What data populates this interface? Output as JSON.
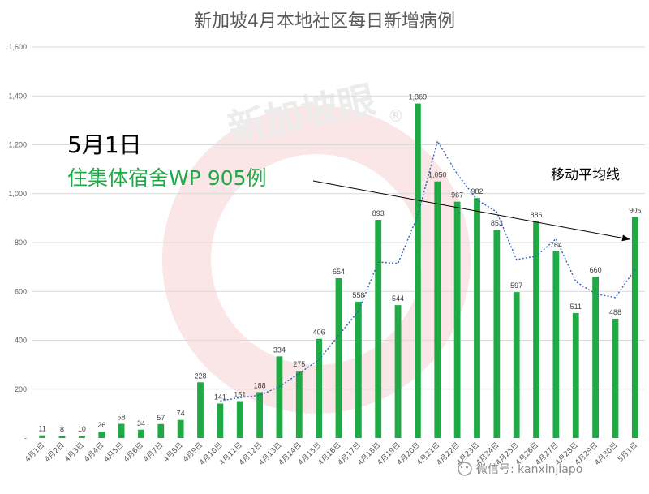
{
  "chart_data": {
    "type": "bar",
    "title": "新加坡4月本地社区每日新增病例",
    "categories": [
      "4月1日",
      "4月2日",
      "4月3日",
      "4月4日",
      "4月5日",
      "4月6日",
      "4月7日",
      "4月8日",
      "4月9日",
      "4月10日",
      "4月11日",
      "4月12日",
      "4月13日",
      "4月14日",
      "4月15日",
      "4月16日",
      "4月17日",
      "4月18日",
      "4月19日",
      "4月20日",
      "4月21日",
      "4月22日",
      "4月23日",
      "4月24日",
      "4月25日",
      "4月26日",
      "4月27日",
      "4月28日",
      "4月29日",
      "4月30日",
      "5月1日"
    ],
    "values": [
      11,
      8,
      10,
      26,
      58,
      34,
      57,
      74,
      228,
      141,
      151,
      188,
      334,
      275,
      406,
      654,
      558,
      893,
      544,
      1369,
      1050,
      967,
      982,
      853,
      597,
      886,
      764,
      511,
      660,
      488,
      905
    ],
    "moving_average": {
      "name": "移动平均线",
      "values": [
        null,
        null,
        null,
        null,
        null,
        null,
        null,
        null,
        null,
        152,
        165,
        175,
        210,
        265,
        320,
        420,
        520,
        720,
        715,
        910,
        1215,
        1080,
        975,
        925,
        730,
        745,
        815,
        640,
        590,
        575,
        690
      ]
    },
    "ylim": [
      0,
      1600
    ],
    "yticks": [
      0,
      200,
      400,
      600,
      800,
      1000,
      1200,
      1400,
      1600
    ],
    "ytick_labels": [
      "-",
      "200",
      "400",
      "600",
      "800",
      "1,000",
      "1,200",
      "1,400",
      "1,600"
    ],
    "grid": true,
    "bar_color": "#1faa45",
    "ma_color": "#2f5fc0"
  },
  "annotation": {
    "date": "5月1日",
    "detail": "住集体宿舍WP 905例"
  },
  "watermark": {
    "text": "新加坡眼",
    "mark": "®",
    "color": "#f4c6c6"
  },
  "footer": {
    "text": "微信号: kanxinjiapo"
  }
}
